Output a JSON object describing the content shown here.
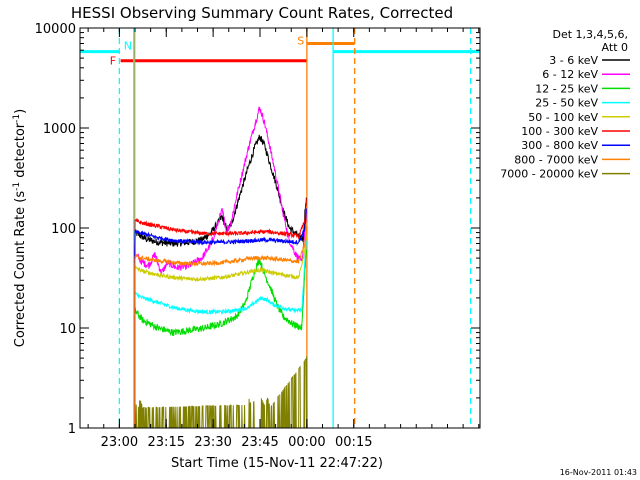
{
  "chart_data": {
    "type": "line",
    "title": "HESSI Observing Summary Count Rates, Corrected",
    "xlabel": "Start Time (15-Nov-11 22:47:22)",
    "ylabel": "Corrected Count Rate (s",
    "ylabel_sup": "-1",
    "ylabel_mid": " detector",
    "ylabel_sup2": "-1",
    "ylabel_end": ")",
    "footer_stamp": "16-Nov-2011 01:43",
    "x_unit": "minutes after 22:47:22",
    "xlim": [
      0,
      128
    ],
    "ylim": [
      1,
      10000
    ],
    "y_scale": "log",
    "x_ticks": [
      {
        "label": "23:00",
        "value": 12.6
      },
      {
        "label": "23:15",
        "value": 27.6
      },
      {
        "label": "23:30",
        "value": 42.6
      },
      {
        "label": "23:45",
        "value": 57.6
      },
      {
        "label": "00:00",
        "value": 72.6
      },
      {
        "label": "00:15",
        "value": 87.6
      }
    ],
    "y_ticks": [
      {
        "label": "1",
        "value": 1
      },
      {
        "label": "10",
        "value": 10
      },
      {
        "label": "100",
        "value": 100
      },
      {
        "label": "1000",
        "value": 1000
      },
      {
        "label": "10000",
        "value": 10000
      }
    ],
    "legend": {
      "placement": "right",
      "header_line1": "Det 1,3,4,5,6,",
      "header_line2": "Att 0",
      "entries": [
        {
          "name": "3 - 6 keV",
          "color": "#000000"
        },
        {
          "name": "6 - 12 keV",
          "color": "#ff00ff"
        },
        {
          "name": "12 - 25 keV",
          "color": "#00dd00"
        },
        {
          "name": "25 - 50 keV",
          "color": "#00ffff"
        },
        {
          "name": "50 - 100 keV",
          "color": "#cccc00"
        },
        {
          "name": "100 - 300 keV",
          "color": "#ff0000"
        },
        {
          "name": "300 - 800 keV",
          "color": "#0000ff"
        },
        {
          "name": "800 - 7000 keV",
          "color": "#ff8000"
        },
        {
          "name": "7000 - 20000 keV",
          "color": "#808000"
        }
      ]
    },
    "series": [
      {
        "name": "3 - 6 keV",
        "color": "#000000",
        "x": [
          17.5,
          17.6,
          19,
          21,
          25,
          30,
          35,
          39,
          42,
          45.5,
          47,
          48.5,
          50,
          52,
          54,
          56,
          57.5,
          59,
          61,
          63,
          65,
          67,
          69,
          70,
          71.5,
          72,
          72.5
        ],
        "y": [
          30,
          90,
          85,
          78,
          72,
          70,
          72,
          76,
          90,
          130,
          95,
          110,
          160,
          260,
          420,
          650,
          820,
          680,
          420,
          260,
          150,
          100,
          88,
          82,
          78,
          150,
          190
        ]
      },
      {
        "name": "6 - 12 keV",
        "color": "#ff00ff",
        "x": [
          17.5,
          17.6,
          20,
          22,
          24,
          26,
          28,
          31,
          35,
          39,
          42,
          45.5,
          47,
          48.5,
          50,
          52,
          54,
          56,
          57.5,
          59,
          61,
          63,
          65,
          67,
          69,
          71,
          72,
          72.5
        ],
        "y": [
          25,
          55,
          45,
          42,
          55,
          35,
          45,
          40,
          42,
          50,
          70,
          150,
          90,
          120,
          200,
          360,
          650,
          1100,
          1600,
          1150,
          600,
          300,
          140,
          75,
          55,
          45,
          100,
          150
        ]
      },
      {
        "name": "12 - 25 keV",
        "color": "#00dd00",
        "x": [
          17.5,
          17.6,
          20,
          25,
          30,
          35,
          40,
          45,
          50,
          53,
          55,
          56.5,
          57.5,
          59,
          61,
          63,
          65,
          68,
          71,
          72,
          72.5
        ],
        "y": [
          14,
          15,
          12,
          10,
          9,
          9.5,
          10,
          11,
          13,
          18,
          30,
          42,
          48,
          35,
          25,
          17,
          13,
          11,
          10,
          40,
          60
        ]
      },
      {
        "name": "25 - 50 keV",
        "color": "#00ffff",
        "x": [
          17.5,
          17.6,
          20,
          25,
          30,
          35,
          40,
          45,
          50,
          54,
          56,
          58,
          60,
          62,
          65,
          68,
          71,
          72,
          72.5
        ],
        "y": [
          17,
          22,
          20,
          18,
          16,
          15,
          14.5,
          14.5,
          15,
          16,
          18,
          20,
          19,
          17,
          16,
          15,
          15,
          50,
          80
        ]
      },
      {
        "name": "50 - 100 keV",
        "color": "#cccc00",
        "x": [
          17.5,
          17.6,
          20,
          25,
          30,
          35,
          40,
          45,
          50,
          55,
          58,
          61,
          65,
          70,
          72,
          72.5
        ],
        "y": [
          30,
          40,
          37,
          34,
          32,
          31,
          31,
          32,
          34,
          37,
          38,
          36,
          34,
          32,
          60,
          90
        ]
      },
      {
        "name": "100 - 300 keV",
        "color": "#ff0000",
        "x": [
          17.5,
          17.6,
          20,
          25,
          30,
          35,
          40,
          45,
          50,
          55,
          60,
          65,
          70,
          72,
          72.5
        ],
        "y": [
          60,
          118,
          112,
          104,
          96,
          91,
          88,
          88,
          88,
          90,
          92,
          88,
          83,
          120,
          200
        ]
      },
      {
        "name": "300 - 800 keV",
        "color": "#0000ff",
        "x": [
          17.5,
          17.6,
          20,
          25,
          30,
          35,
          40,
          45,
          50,
          55,
          60,
          65,
          70,
          72,
          72.5
        ],
        "y": [
          50,
          92,
          88,
          80,
          75,
          73,
          72,
          72,
          73,
          75,
          76,
          74,
          72,
          100,
          160
        ]
      },
      {
        "name": "800 - 7000 keV",
        "color": "#ff8000",
        "x": [
          17.5,
          17.6,
          20,
          25,
          30,
          35,
          40,
          45,
          50,
          55,
          60,
          65,
          70,
          72,
          72.5
        ],
        "y": [
          40,
          52,
          50,
          47,
          45,
          44,
          44,
          45,
          47,
          50,
          50,
          48,
          46,
          70,
          110
        ]
      },
      {
        "name": "7000 - 20000 keV",
        "color": "#808000",
        "x": [
          17.5,
          17.8,
          18.5,
          19.2,
          20,
          53,
          54,
          55,
          56,
          57,
          58,
          59,
          60,
          61,
          62,
          72.5,
          72.8
        ],
        "y": [
          1.5,
          1.8,
          1.5,
          2.0,
          1.6,
          1.7,
          2.0,
          1.6,
          2.0,
          1.8,
          2.0,
          1.7,
          2.0,
          1.6,
          1.8,
          5,
          6
        ]
      }
    ],
    "markers": [
      {
        "kind": "hline",
        "color": "#00ffff",
        "x_range": [
          0,
          12.6
        ],
        "y": 5800
      },
      {
        "kind": "hline",
        "color": "#00ffff",
        "x_range": [
          81,
          128
        ],
        "y": 5800
      },
      {
        "kind": "hline",
        "color": "#ff0000",
        "x_range": [
          13,
          72.5
        ],
        "y": 4700
      },
      {
        "kind": "hline",
        "color": "#ff8000",
        "x_range": [
          72.6,
          87.9
        ],
        "y": 7000
      },
      {
        "kind": "vline",
        "color": "#00ffff",
        "style": "dashed",
        "x": 12.6
      },
      {
        "kind": "vline",
        "color": "#00ffff",
        "style": "solid",
        "x": 81
      },
      {
        "kind": "vline",
        "color": "#00ffff",
        "style": "dashed",
        "x": 125
      },
      {
        "kind": "vline",
        "color": "#ff8000",
        "style": "solid",
        "x": 72.6
      },
      {
        "kind": "vline",
        "color": "#ff8000",
        "style": "dashed",
        "x": 87.9
      },
      {
        "kind": "vline",
        "color": "#ff8000",
        "style": "solid",
        "x": 17.5
      },
      {
        "kind": "vline",
        "color": "#00ffff",
        "style": "solid",
        "x": 17.2
      },
      {
        "kind": "label",
        "text": "N",
        "color": "#00ffff",
        "x": 14,
        "y": 6100
      },
      {
        "kind": "label",
        "text": "F",
        "color": "#ff0000",
        "x": 9.5,
        "y": 4300
      },
      {
        "kind": "label",
        "text": "S",
        "color": "#ff8000",
        "x": 69.5,
        "y": 6800
      }
    ]
  }
}
